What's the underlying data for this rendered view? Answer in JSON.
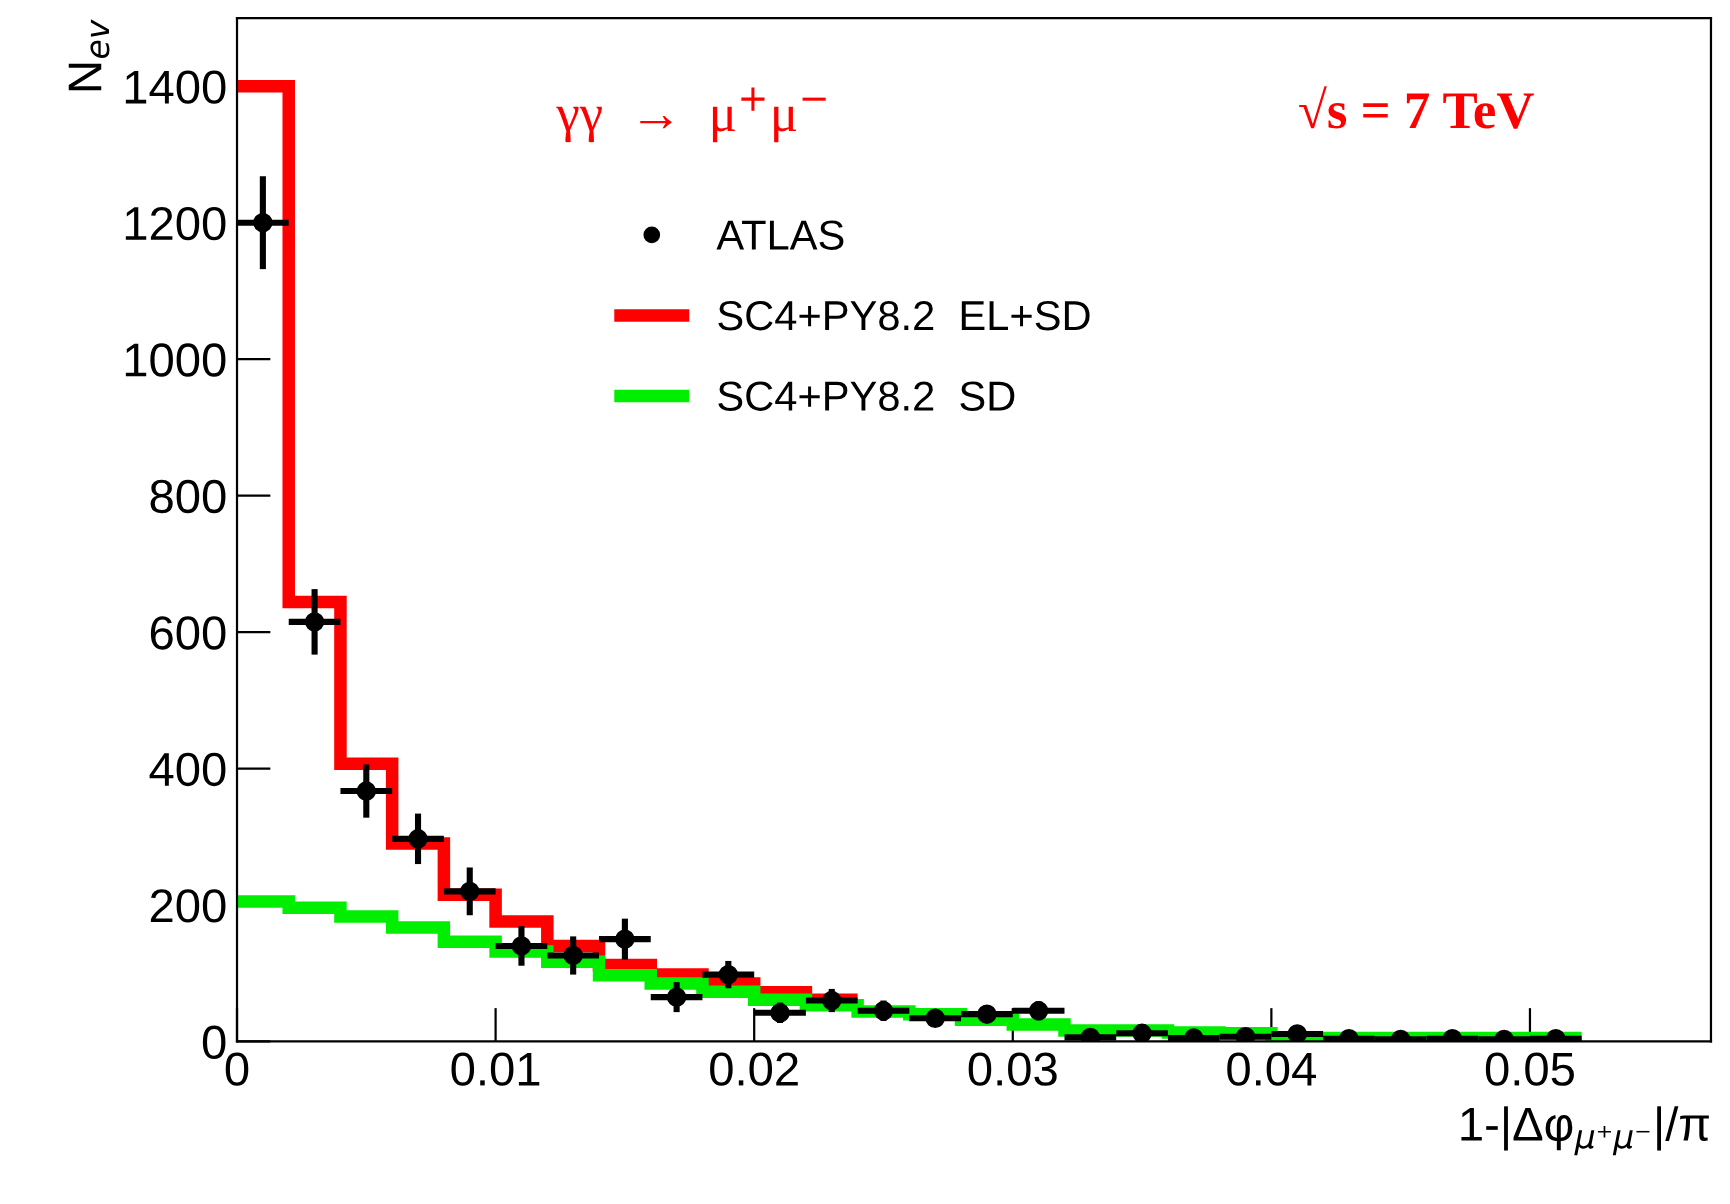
{
  "chart_data": {
    "type": "histogram",
    "xlabel": "1-|Δφ$_{μ⁺μ⁻}$|/π",
    "ylabel": "N$_{ev}$",
    "annotations": [
      "γγ  →  μ$^{+}$μ$^{−}$",
      "√s = 7 TeV"
    ],
    "bins": [
      0,
      0.002,
      0.004,
      0.006,
      0.008,
      0.01,
      0.012,
      0.014,
      0.016,
      0.018,
      0.02,
      0.022,
      0.024,
      0.026,
      0.028,
      0.03,
      0.032,
      0.034,
      0.036,
      0.038,
      0.04,
      0.042,
      0.044,
      0.046,
      0.048,
      0.05,
      0.052
    ],
    "series": [
      {
        "name": "ATLAS",
        "type": "scatter",
        "color": "#000000",
        "marker": "circle",
        "x": [
          0.001,
          0.003,
          0.005,
          0.007,
          0.009,
          0.011,
          0.013,
          0.015,
          0.017,
          0.019,
          0.021,
          0.023,
          0.025,
          0.027,
          0.029,
          0.031,
          0.033,
          0.035,
          0.037,
          0.039,
          0.041,
          0.043,
          0.045,
          0.047,
          0.049,
          0.051
        ],
        "values": [
          1200,
          615,
          367,
          297,
          220,
          140,
          126,
          150,
          65,
          98,
          42,
          60,
          45,
          34,
          40,
          45,
          6,
          12,
          5,
          7,
          11,
          4,
          3,
          4,
          3,
          4
        ],
        "errors": [
          68,
          48,
          39,
          37,
          35,
          29,
          28,
          30,
          22,
          20,
          15,
          17,
          15,
          12,
          13,
          14,
          null,
          null,
          null,
          null,
          null,
          null,
          null,
          null,
          null,
          null
        ],
        "xerrors": [
          0.001,
          0.001,
          0.001,
          0.001,
          0.001,
          0.001,
          0.001,
          0.001,
          0.001,
          0.001,
          0.001,
          0.001,
          0.001,
          0.001,
          0.001,
          0.001,
          0.001,
          0.001,
          0.001,
          0.001,
          0.001,
          0.001,
          0.001,
          0.001,
          0.001,
          0.001
        ]
      },
      {
        "name": "SC4+PY8.2  EL+SD",
        "color": "#ff0000",
        "bins": [
          0,
          0.002,
          0.004,
          0.006,
          0.008,
          0.01,
          0.012,
          0.014,
          0.016,
          0.018,
          0.02,
          0.022,
          0.024
        ],
        "values": [
          1400,
          644,
          407,
          290,
          215,
          176,
          140,
          112,
          98,
          85,
          72,
          61
        ]
      },
      {
        "name": "SC4+PY8.2  SD",
        "color": "#00ee00",
        "values": [
          205,
          196,
          183,
          167,
          146,
          132,
          117,
          97,
          85,
          73,
          61,
          53,
          44,
          40,
          32,
          25,
          16,
          16,
          13,
          12,
          5,
          5,
          5,
          5,
          5,
          5
        ]
      }
    ],
    "xlim": [
      0,
      0.057
    ],
    "ylim": [
      0,
      1500
    ],
    "xticks": [
      0,
      0.01,
      0.02,
      0.03,
      0.04,
      0.05
    ],
    "yticks": [
      0,
      200,
      400,
      600,
      800,
      1000,
      1200,
      1400
    ],
    "legend": "top",
    "grid": false
  }
}
